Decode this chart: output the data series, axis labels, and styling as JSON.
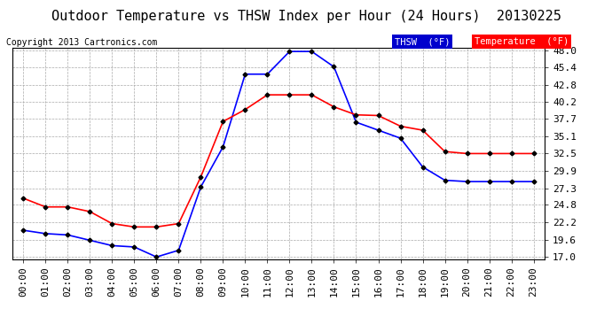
{
  "title": "Outdoor Temperature vs THSW Index per Hour (24 Hours)  20130225",
  "copyright": "Copyright 2013 Cartronics.com",
  "x_labels": [
    "00:00",
    "01:00",
    "02:00",
    "03:00",
    "04:00",
    "05:00",
    "06:00",
    "07:00",
    "08:00",
    "09:00",
    "10:00",
    "11:00",
    "12:00",
    "13:00",
    "14:00",
    "15:00",
    "16:00",
    "17:00",
    "18:00",
    "19:00",
    "20:00",
    "21:00",
    "22:00",
    "23:00"
  ],
  "thsw_values": [
    21.0,
    20.5,
    20.3,
    19.5,
    18.7,
    18.5,
    17.0,
    18.0,
    27.5,
    33.5,
    44.4,
    44.4,
    47.8,
    47.8,
    45.5,
    37.2,
    36.0,
    34.8,
    30.5,
    28.5,
    28.3,
    28.3,
    28.3,
    28.3
  ],
  "temp_values": [
    25.8,
    24.5,
    24.5,
    23.8,
    22.0,
    21.5,
    21.5,
    22.0,
    29.0,
    37.3,
    39.1,
    41.3,
    41.3,
    41.3,
    39.5,
    38.3,
    38.2,
    36.6,
    36.0,
    32.8,
    32.5,
    32.5,
    32.5,
    32.5
  ],
  "thsw_color": "#0000ff",
  "temp_color": "#ff0000",
  "background_color": "#ffffff",
  "grid_color": "#aaaaaa",
  "y_min": 17.0,
  "y_max": 48.0,
  "y_ticks": [
    17.0,
    19.6,
    22.2,
    24.8,
    27.3,
    29.9,
    32.5,
    35.1,
    37.7,
    40.2,
    42.8,
    45.4,
    48.0
  ],
  "legend_thsw_bg": "#0000cd",
  "legend_temp_bg": "#ff0000",
  "legend_text_color": "#ffffff",
  "title_fontsize": 11,
  "copyright_fontsize": 7,
  "tick_fontsize": 8,
  "marker": "D",
  "marker_size": 2.5,
  "marker_color": "#000000",
  "line_width": 1.2
}
